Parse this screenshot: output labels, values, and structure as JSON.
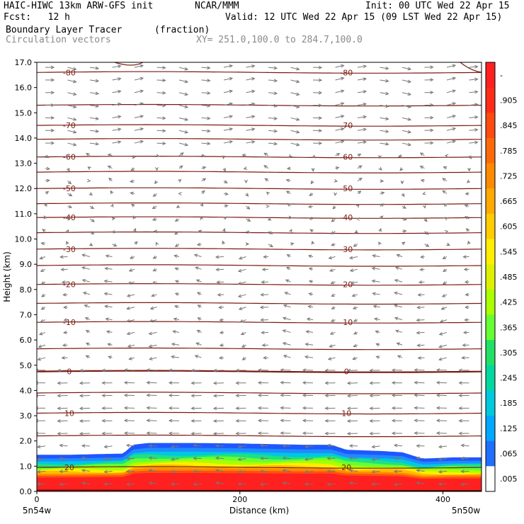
{
  "header": {
    "line1_left": "HAIC-HIWC 13km ARW-GFS init",
    "line1_mid": "NCAR/MMM",
    "line1_right": "Init: 00 UTC Wed 22 Apr 15",
    "line2_left": "Fcst:   12 h",
    "line2_right": "Valid: 12 UTC Wed 22 Apr 15 (09 LST Wed 22 Apr 15)",
    "line3_left": "Boundary Layer Tracer",
    "line3_mid": "(fraction)",
    "line4_left": "Circulation vectors",
    "line4_mid": "XY= 251.0,100.0 to 284.7,100.0"
  },
  "chart_data": {
    "type": "heatmap",
    "title": "Boundary Layer Tracer",
    "units": "(fraction)",
    "xlabel": "Distance (km)",
    "ylabel": "Height (km)",
    "xlim": [
      0,
      438
    ],
    "ylim": [
      0,
      17
    ],
    "x_ticks": [
      0,
      200,
      400
    ],
    "y_ticks": [
      "0.0",
      "1.0",
      "2.0",
      "3.0",
      "4.0",
      "5.0",
      "6.0",
      "7.0",
      "8.0",
      "9.0",
      "10.0",
      "11.0",
      "12.0",
      "13.0",
      "14.0",
      "15.0",
      "16.0",
      "17.0"
    ],
    "x_endpoints": [
      "5n54w",
      "5n50w"
    ],
    "colorbar_labels": [
      "-",
      ".905",
      ".845",
      ".785",
      ".725",
      ".665",
      ".605",
      ".545",
      ".485",
      ".425",
      ".365",
      ".305",
      ".245",
      ".185",
      ".125",
      ".065",
      ".005"
    ],
    "colorbar_colors": [
      "#ff2020",
      "#ff2d18",
      "#ff4a10",
      "#ff6a08",
      "#ff8a00",
      "#ffaa00",
      "#ffcc00",
      "#ffee00",
      "#ddf000",
      "#aaff00",
      "#66ff33",
      "#22e066",
      "#00d8a0",
      "#00c8dd",
      "#00a8ff",
      "#1f6fff",
      "#ffffff"
    ],
    "tracer_top_km": [
      [
        0,
        1.45
      ],
      [
        30,
        1.45
      ],
      [
        85,
        1.5
      ],
      [
        95,
        1.85
      ],
      [
        110,
        1.92
      ],
      [
        150,
        1.92
      ],
      [
        200,
        1.9
      ],
      [
        260,
        1.85
      ],
      [
        290,
        1.85
      ],
      [
        305,
        1.65
      ],
      [
        340,
        1.6
      ],
      [
        360,
        1.55
      ],
      [
        380,
        1.3
      ],
      [
        410,
        1.35
      ],
      [
        438,
        1.35
      ]
    ],
    "isotherms_C": [
      {
        "label": "-80",
        "km": 16.6
      },
      {
        "label": "-70",
        "km": 14.5
      },
      {
        "label": "-60",
        "km": 13.25
      },
      {
        "label": "-50",
        "km": 12.0
      },
      {
        "label": "-40",
        "km": 10.85
      },
      {
        "label": "-30",
        "km": 9.6
      },
      {
        "label": "-20",
        "km": 8.2
      },
      {
        "label": "-10",
        "km": 6.7
      },
      {
        "label": "0",
        "km": 4.75
      },
      {
        "label": "10",
        "km": 3.1
      },
      {
        "label": "20",
        "km": 0.95
      }
    ],
    "isotherms_unlabeled_km": [
      15.3,
      13.95,
      12.65,
      11.4,
      10.25,
      8.95,
      7.45,
      5.65,
      3.9,
      2.2
    ],
    "vectors": {
      "upper_dir": "right-down",
      "middle_dir": "mixed",
      "lower_dir": "left"
    }
  }
}
